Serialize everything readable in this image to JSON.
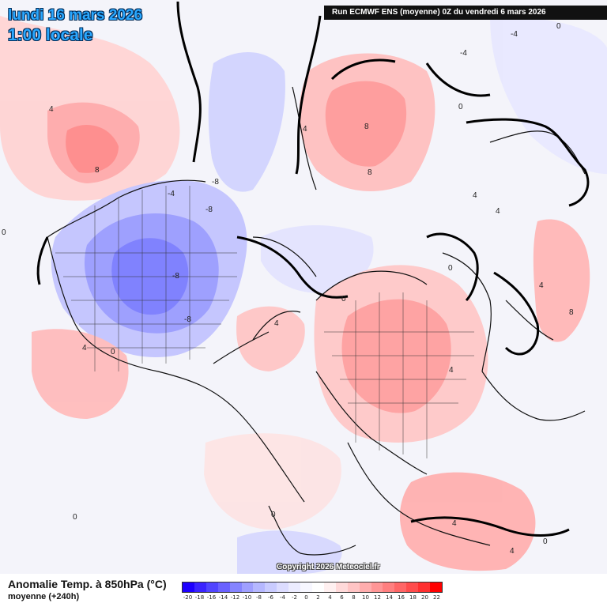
{
  "header": {
    "date": "lundi 16 mars 2026",
    "time": "1:00 locale",
    "run": "Run ECMWF ENS (moyenne) 0Z du vendredi 6 mars 2026"
  },
  "map": {
    "variable": "Anomalie Temp. à 850hPa (°C)",
    "description": "moyenne   (+240h)",
    "copyright": "Copyright 2026 Meteociel.fr",
    "contour_labels": {
      "na_warm": "4",
      "na_warm2": "8",
      "hudson_cold": "-8",
      "hudson_cold2": "-8",
      "hudson_cold3": "-8",
      "greenland_cold": "-8",
      "arctic_cold": "-4",
      "europe_warm": "4",
      "siberia_warm": "8",
      "siberia_warm2": "8",
      "siberia_warm3": "4",
      "pacific_zero": "0",
      "atlantic_zero": "0",
      "asia_zero": "0",
      "asia_4": "4",
      "asia_4b": "4",
      "east_asia_8": "8",
      "iceland_4": "4",
      "us_south_4": "4",
      "us_south_0": "0",
      "pac_left_0": "0",
      "pac_bottom_0": "0",
      "africa_4": "4",
      "africa_0": "0",
      "arctic_top_neg4": "-4",
      "top_right_0": "0",
      "top_mid_neg4": "-4",
      "kamchatka_0": "0",
      "china_4": "4",
      "china_4b": "4"
    }
  },
  "legend": {
    "colors": [
      "#1e00ff",
      "#3b24ff",
      "#5145ff",
      "#6a61ff",
      "#8584ff",
      "#9f9fff",
      "#b5b7ff",
      "#c9cbff",
      "#dcdcff",
      "#ececff",
      "#f7f7ff",
      "#ffffff",
      "#fff0f0",
      "#ffd9d9",
      "#ffc4c4",
      "#ffadad",
      "#ff9696",
      "#ff7f7f",
      "#ff6666",
      "#ff4c4c",
      "#ff2f2f",
      "#ff0000"
    ],
    "ticks": [
      "-20",
      "-18",
      "-16",
      "-14",
      "-12",
      "-10",
      "-8",
      "-6",
      "-4",
      "-2",
      "0",
      "2",
      "4",
      "6",
      "8",
      "10",
      "12",
      "14",
      "16",
      "18",
      "20",
      "22"
    ]
  }
}
